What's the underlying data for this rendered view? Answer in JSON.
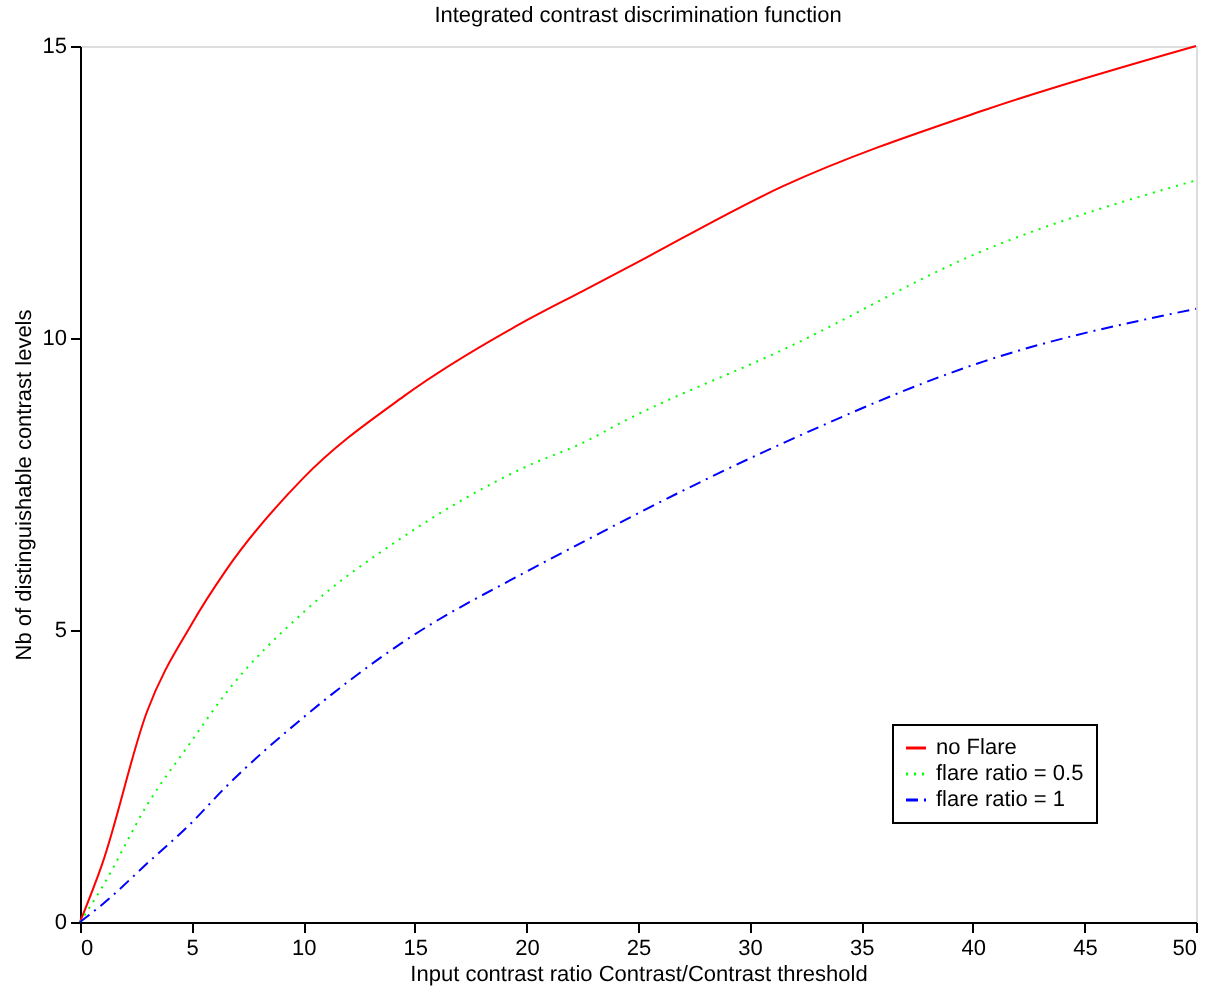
{
  "chart_data": {
    "type": "line",
    "title": "Integrated contrast discrimination function",
    "xlabel": "Input contrast ratio Contrast/Contrast threshold",
    "ylabel": "Nb of distinguishable contrast levels",
    "x": [
      0,
      1,
      3,
      5,
      6.5,
      10,
      14.5,
      20,
      22.5,
      24.5,
      31.5,
      40.5,
      50
    ],
    "series": [
      {
        "name": "no Flare",
        "color": "#ff0000",
        "line_style": "solid",
        "values": [
          0,
          1.0,
          3.6,
          5.1,
          6.0,
          7.6,
          9.0,
          10.3,
          10.8,
          11.2,
          12.6,
          13.9,
          15.0
        ]
      },
      {
        "name": "flare ratio = 0.5",
        "color": "#00ff00",
        "line_style": "dotted",
        "values": [
          0,
          0.6,
          2.0,
          3.1,
          3.9,
          5.3,
          6.6,
          7.8,
          8.2,
          8.6,
          9.8,
          11.5,
          12.7
        ]
      },
      {
        "name": "flare ratio = 1",
        "color": "#0000ff",
        "line_style": "dashed",
        "values": [
          0,
          0.3,
          1.0,
          1.7,
          2.3,
          3.5,
          4.8,
          6.0,
          6.5,
          6.9,
          8.2,
          9.6,
          10.5
        ]
      }
    ],
    "xlim": [
      0,
      50
    ],
    "xticks": [
      0,
      5,
      10,
      15,
      20,
      25,
      30,
      35,
      40,
      45,
      50
    ],
    "ylim": [
      0,
      15
    ],
    "yticks": [
      0,
      5,
      10,
      15
    ],
    "grid": false,
    "legend": "bottom right",
    "marker": "none"
  }
}
